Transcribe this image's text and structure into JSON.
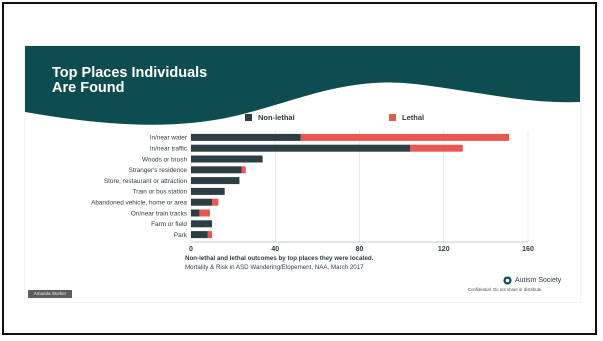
{
  "slide": {
    "title_line1": "Top Places Individuals",
    "title_line2": "Are Found",
    "caption_bold": "Non-lethal and lethal outcomes by top places they were located.",
    "caption_source": "Mortality & Risk in ASD Wandering/Elopement, NAA, March 2017",
    "logo_text": "Autism Society",
    "confidential_text": "Confidential. Do not share or distribute.",
    "badge_text": "Amanda Worker"
  },
  "colors": {
    "header_bg": "#0e4d4f",
    "non_lethal": "#2e3d43",
    "lethal": "#e8584f",
    "axis_text": "#2e3d43"
  },
  "chart_data": {
    "type": "bar",
    "orientation": "horizontal",
    "stacked": true,
    "categories": [
      "In/near water",
      "In/near traffic",
      "Woods or brush",
      "Stranger's residence",
      "Store, restaurant or attraction",
      "Train or bus station",
      "Abandoned vehicle, home or area",
      "On/near train tracks",
      "Farm or field",
      "Park"
    ],
    "series": [
      {
        "name": "Non-lethal",
        "values": [
          52,
          104,
          34,
          24,
          23,
          16,
          10,
          4,
          10,
          8
        ]
      },
      {
        "name": "Lethal",
        "values": [
          99,
          25,
          0,
          2,
          0,
          0,
          3,
          5,
          0,
          2
        ]
      }
    ],
    "xlim": [
      0,
      160
    ],
    "xticks": [
      "0",
      "40",
      "80",
      "120",
      "160"
    ],
    "legend_position": "top",
    "grid": true,
    "title": "",
    "xlabel": "",
    "ylabel": ""
  }
}
